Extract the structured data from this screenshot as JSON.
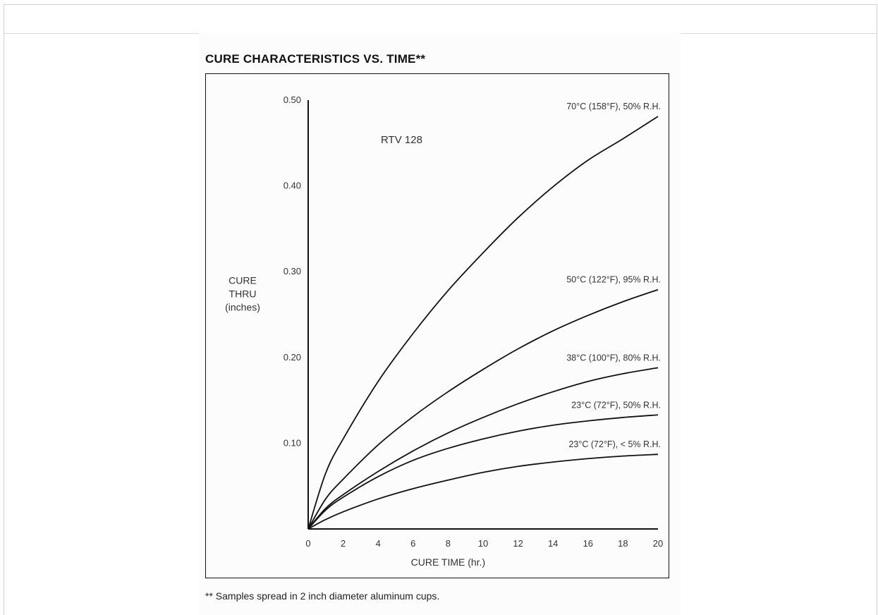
{
  "chart_data": {
    "type": "line",
    "title": "CURE CHARACTERISTICS VS. TIME**",
    "annotation": "RTV 128",
    "ylabel": [
      "CURE",
      "THRU",
      "(inches)"
    ],
    "xlabel": "CURE TIME (hr.)",
    "xlim": [
      0,
      20
    ],
    "ylim": [
      0,
      0.5
    ],
    "x_ticks": [
      "0",
      "2",
      "4",
      "6",
      "8",
      "10",
      "12",
      "14",
      "16",
      "18",
      "20"
    ],
    "y_ticks": [
      "0.10",
      "0.20",
      "0.30",
      "0.40",
      "0.50"
    ],
    "grid": false,
    "x": [
      0,
      1,
      2,
      4,
      6,
      8,
      10,
      12,
      14,
      16,
      18,
      20
    ],
    "series": [
      {
        "name": "70°C (158°F), 50% R.H.",
        "values": [
          0,
          0.065,
          0.105,
          0.172,
          0.228,
          0.278,
          0.322,
          0.363,
          0.399,
          0.43,
          0.455,
          0.481
        ]
      },
      {
        "name": "50°C (122°F), 95% R.H.",
        "values": [
          0,
          0.035,
          0.058,
          0.098,
          0.131,
          0.16,
          0.186,
          0.21,
          0.231,
          0.249,
          0.265,
          0.279
        ]
      },
      {
        "name": "38°C (100°F), 80% R.H.",
        "values": [
          0,
          0.024,
          0.04,
          0.067,
          0.091,
          0.112,
          0.13,
          0.146,
          0.16,
          0.172,
          0.181,
          0.188
        ]
      },
      {
        "name": "23°C (72°F), 50% R.H.",
        "values": [
          0,
          0.022,
          0.037,
          0.061,
          0.08,
          0.094,
          0.105,
          0.114,
          0.121,
          0.126,
          0.13,
          0.133
        ]
      },
      {
        "name": "23°C (72°F), < 5% R.H.",
        "values": [
          0,
          0.011,
          0.02,
          0.035,
          0.047,
          0.057,
          0.066,
          0.073,
          0.078,
          0.082,
          0.085,
          0.087
        ]
      }
    ]
  },
  "footnote": "** Samples spread in 2 inch diameter aluminum cups."
}
